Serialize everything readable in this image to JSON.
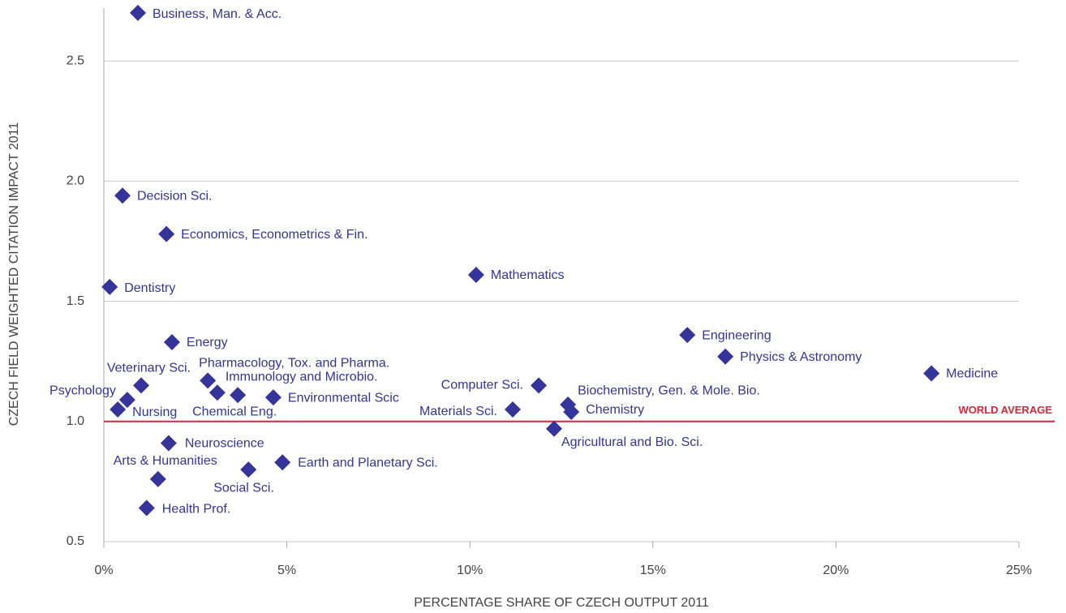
{
  "chart_data": {
    "type": "scatter",
    "x_label": "PERCENTAGE SHARE OF CZECH OUTPUT 2011",
    "y_label": "CZECH FIELD WEIGHTED CITATION IMPACT 2011",
    "reference_line": {
      "value": 1,
      "label": "WORLD AVERAGE",
      "color": "#d7263d"
    },
    "color": "#34349a",
    "labels": [
      "Business, Man. & Acc.",
      "Decision Sci.",
      "Economics, Econometrics & Fin.",
      "Dentistry",
      "Mathematics",
      "Energy",
      "Engineering",
      "Physics & Astronomy",
      "Medicine",
      "Veterinary Sci.",
      "Pharmacology, Tox. and Pharma.",
      "Immunology and Microbio.",
      "Chemical Eng.",
      "Environmental Scic",
      "Psychology",
      "Nursing",
      "Computer Sci.",
      "Materials Sci.",
      "Biochemistry, Gen. & Mole. Bio.",
      "Chemistry",
      "Agricultural and Bio. Sci.",
      "Neuroscience",
      "Arts & Humanities",
      "Health Prof.",
      "Social Sci.",
      "Earth and Planetary Sci."
    ],
    "x": [
      0.93,
      0.51,
      1.71,
      0.16,
      10.17,
      1.86,
      15.94,
      16.98,
      22.61,
      1.02,
      2.84,
      3.1,
      3.66,
      4.63,
      0.64,
      0.38,
      11.88,
      11.17,
      12.68,
      12.77,
      12.3,
      1.77,
      1.48,
      1.17,
      3.95,
      4.88
    ],
    "values": [
      2.7,
      1.94,
      1.78,
      1.56,
      1.61,
      1.33,
      1.36,
      1.27,
      1.2,
      1.15,
      1.17,
      1.12,
      1.11,
      1.1,
      1.09,
      1.05,
      1.15,
      1.05,
      1.07,
      1.04,
      0.97,
      0.91,
      0.76,
      0.64,
      0.8,
      0.83
    ],
    "xlim": [
      0,
      25
    ],
    "ylim": [
      0.5,
      2.72
    ],
    "xticks": [
      {
        "value": 0,
        "label": "0%"
      },
      {
        "value": 5,
        "label": "5%"
      },
      {
        "value": 10,
        "label": "10%"
      },
      {
        "value": 15,
        "label": "15%"
      },
      {
        "value": 20,
        "label": "20%"
      },
      {
        "value": 25,
        "label": "25%"
      }
    ],
    "yticks": [
      0.5,
      {
        "value": 1,
        "label": "1.0"
      },
      1.5,
      {
        "value": 2,
        "label": "2.0"
      },
      2.5
    ],
    "grid": true
  }
}
